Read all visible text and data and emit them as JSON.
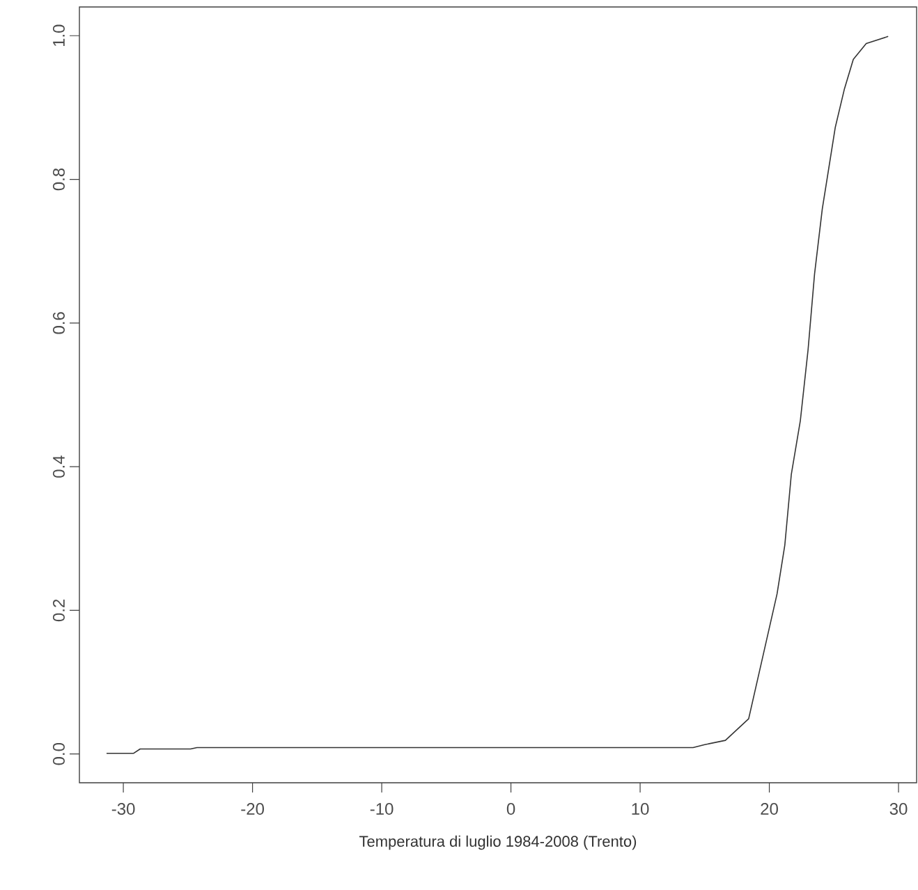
{
  "chart_data": {
    "type": "line",
    "xlabel": "Temperatura di luglio 1984-2008 (Trento)",
    "xlim": [
      -33.4,
      31.4
    ],
    "ylim": [
      -0.04,
      1.04
    ],
    "xticks": [
      -30,
      -20,
      -10,
      0,
      10,
      20,
      30
    ],
    "yticks": [
      {
        "value": 0,
        "label": "0.0"
      },
      {
        "value": 0.2,
        "label": "0.2"
      },
      {
        "value": 0.4,
        "label": "0.4"
      },
      {
        "value": 0.6,
        "label": "0.6"
      },
      {
        "value": 0.8,
        "label": "0.8"
      },
      {
        "value": 1,
        "label": "1.0"
      }
    ],
    "grid": false,
    "marker": "none",
    "line_style": "solid",
    "x": [
      -31.3,
      -29.2,
      -28.7,
      -24.8,
      -24.3,
      14.1,
      15.0,
      16.6,
      18.4,
      19.4,
      20.6,
      21.2,
      21.7,
      22.4,
      23.0,
      23.5,
      24.1,
      24.5,
      25.1,
      25.8,
      26.5,
      27.5,
      29.2
    ],
    "series": [
      {
        "color": "#333333",
        "values": [
          0.001,
          0.001,
          0.007,
          0.007,
          0.009,
          0.009,
          0.013,
          0.019,
          0.049,
          0.128,
          0.223,
          0.291,
          0.389,
          0.464,
          0.563,
          0.668,
          0.759,
          0.804,
          0.872,
          0.925,
          0.967,
          0.989,
          0.999
        ]
      }
    ]
  }
}
